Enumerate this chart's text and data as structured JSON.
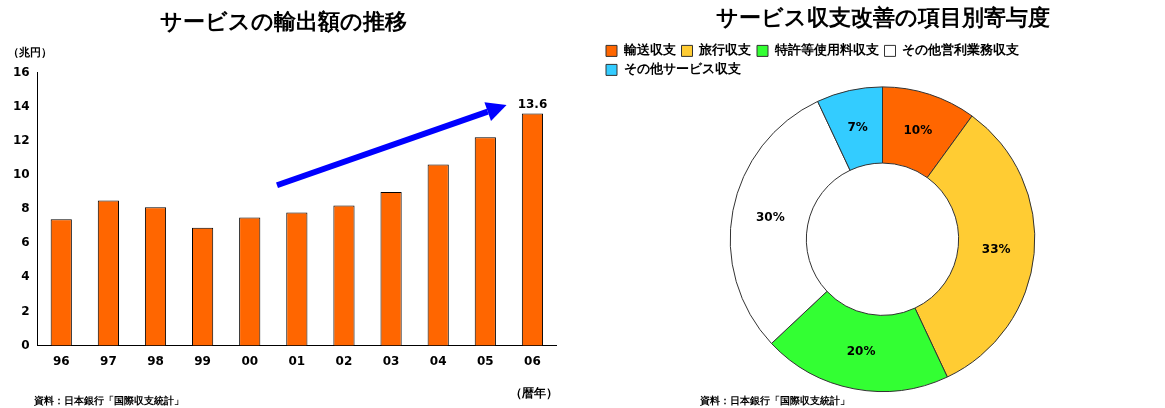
{
  "chart_data": [
    {
      "type": "bar",
      "title": "サービスの輸出額の推移",
      "ylabel": "（兆円）",
      "xlabel": "（暦年）",
      "categories": [
        "96",
        "97",
        "98",
        "99",
        "00",
        "01",
        "02",
        "03",
        "04",
        "05",
        "06"
      ],
      "values": [
        7.4,
        8.5,
        8.1,
        6.9,
        7.5,
        7.8,
        8.2,
        9.0,
        10.6,
        12.2,
        13.6
      ],
      "value_labels": [
        null,
        null,
        null,
        null,
        null,
        null,
        null,
        null,
        null,
        null,
        "13.6"
      ],
      "color": "#ff6600",
      "ylim": [
        0,
        16
      ],
      "yticks": [
        0,
        2,
        4,
        6,
        8,
        10,
        12,
        14,
        16
      ],
      "grid": false,
      "legend": false,
      "annotations": [
        "資料：日本銀行「国際収支統計」"
      ]
    },
    {
      "type": "donut",
      "title": "サービス収支改善の項目別寄与度",
      "categories": [
        "輸送収支",
        "旅行収支",
        "特許等使用料収支",
        "その他営利業務収支",
        "その他サービス収支"
      ],
      "values": [
        10,
        33,
        20,
        30,
        7
      ],
      "value_labels": [
        "10%",
        "33%",
        "20%",
        "30%",
        "7%"
      ],
      "colors": [
        "#ff6600",
        "#ffcc33",
        "#33ff33",
        "#ffffff",
        "#33ccff"
      ],
      "legend": "top",
      "annotations": [
        "資料：日本銀行「国際収支統計」"
      ]
    }
  ]
}
